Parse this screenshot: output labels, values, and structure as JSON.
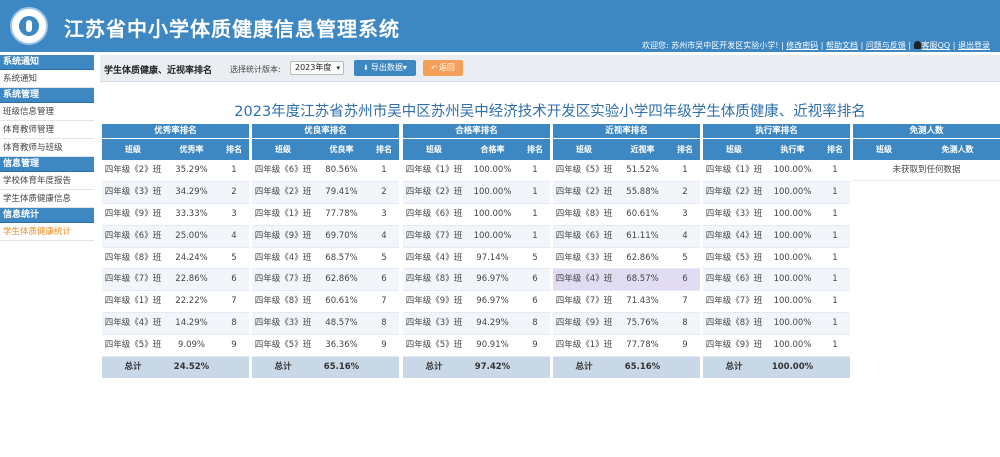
{
  "header": {
    "title": "江苏省中小学体质健康信息管理系统",
    "welcome": "欢迎您: 苏州市吴中区开发区实验小学!",
    "links": [
      "修改密码",
      "帮助文档",
      "问题与反馈",
      "客服QQ",
      "退出登录"
    ]
  },
  "sidebar": {
    "groups": [
      {
        "title": "系统通知",
        "items": [
          "系统通知"
        ]
      },
      {
        "title": "系统管理",
        "items": [
          "班级信息管理",
          "体育教师管理",
          "体育教师与班级"
        ]
      },
      {
        "title": "信息管理",
        "items": [
          "学校体育年度报告",
          "学生体质健康信息"
        ]
      },
      {
        "title": "信息统计",
        "items": [
          "学生体质健康统计"
        ]
      }
    ],
    "active": "学生体质健康统计"
  },
  "toolbar": {
    "title": "学生体质健康、近视率排名",
    "version_label": "选择统计版本:",
    "version_value": "2023年度",
    "export_label": "导出数据",
    "back_label": "返回"
  },
  "main": {
    "title": "2023年度江苏省苏州市吴中区苏州吴中经济技术开发区实验小学四年级学生体质健康、近视率排名",
    "col_class": "班级",
    "col_rank": "排名",
    "total_label": "总计"
  },
  "colors": {
    "primary": "#3d87c2",
    "accent": "#f08c1e",
    "highlight": "#e2dcf3"
  },
  "panels": [
    {
      "title": "优秀率排名",
      "col": "优秀率",
      "total": "24.52%",
      "rows": [
        [
          "四年级《2》班",
          "35.29%",
          "1"
        ],
        [
          "四年级《3》班",
          "34.29%",
          "2"
        ],
        [
          "四年级《9》班",
          "33.33%",
          "3"
        ],
        [
          "四年级《6》班",
          "25.00%",
          "4"
        ],
        [
          "四年级《8》班",
          "24.24%",
          "5"
        ],
        [
          "四年级《7》班",
          "22.86%",
          "6"
        ],
        [
          "四年级《1》班",
          "22.22%",
          "7"
        ],
        [
          "四年级《4》班",
          "14.29%",
          "8"
        ],
        [
          "四年级《5》班",
          "9.09%",
          "9"
        ]
      ]
    },
    {
      "title": "优良率排名",
      "col": "优良率",
      "total": "65.16%",
      "rows": [
        [
          "四年级《6》班",
          "80.56%",
          "1"
        ],
        [
          "四年级《2》班",
          "79.41%",
          "2"
        ],
        [
          "四年级《1》班",
          "77.78%",
          "3"
        ],
        [
          "四年级《9》班",
          "69.70%",
          "4"
        ],
        [
          "四年级《4》班",
          "68.57%",
          "5"
        ],
        [
          "四年级《7》班",
          "62.86%",
          "6"
        ],
        [
          "四年级《8》班",
          "60.61%",
          "7"
        ],
        [
          "四年级《3》班",
          "48.57%",
          "8"
        ],
        [
          "四年级《5》班",
          "36.36%",
          "9"
        ]
      ]
    },
    {
      "title": "合格率排名",
      "col": "合格率",
      "total": "97.42%",
      "rows": [
        [
          "四年级《1》班",
          "100.00%",
          "1"
        ],
        [
          "四年级《2》班",
          "100.00%",
          "1"
        ],
        [
          "四年级《6》班",
          "100.00%",
          "1"
        ],
        [
          "四年级《7》班",
          "100.00%",
          "1"
        ],
        [
          "四年级《4》班",
          "97.14%",
          "5"
        ],
        [
          "四年级《8》班",
          "96.97%",
          "6"
        ],
        [
          "四年级《9》班",
          "96.97%",
          "6"
        ],
        [
          "四年级《3》班",
          "94.29%",
          "8"
        ],
        [
          "四年级《5》班",
          "90.91%",
          "9"
        ]
      ]
    },
    {
      "title": "近视率排名",
      "col": "近视率",
      "total": "65.16%",
      "rows": [
        [
          "四年级《5》班",
          "51.52%",
          "1"
        ],
        [
          "四年级《2》班",
          "55.88%",
          "2"
        ],
        [
          "四年级《8》班",
          "60.61%",
          "3"
        ],
        [
          "四年级《6》班",
          "61.11%",
          "4"
        ],
        [
          "四年级《3》班",
          "62.86%",
          "5"
        ],
        [
          "四年级《4》班",
          "68.57%",
          "6"
        ],
        [
          "四年级《7》班",
          "71.43%",
          "7"
        ],
        [
          "四年级《9》班",
          "75.76%",
          "8"
        ],
        [
          "四年级《1》班",
          "77.78%",
          "9"
        ]
      ]
    },
    {
      "title": "执行率排名",
      "col": "执行率",
      "total": "100.00%",
      "rows": [
        [
          "四年级《1》班",
          "100.00%",
          "1"
        ],
        [
          "四年级《2》班",
          "100.00%",
          "1"
        ],
        [
          "四年级《3》班",
          "100.00%",
          "1"
        ],
        [
          "四年级《4》班",
          "100.00%",
          "1"
        ],
        [
          "四年级《5》班",
          "100.00%",
          "1"
        ],
        [
          "四年级《6》班",
          "100.00%",
          "1"
        ],
        [
          "四年级《7》班",
          "100.00%",
          "1"
        ],
        [
          "四年级《8》班",
          "100.00%",
          "1"
        ],
        [
          "四年级《9》班",
          "100.00%",
          "1"
        ]
      ]
    }
  ],
  "exempt_panel": {
    "title": "免测人数",
    "col": "免测人数",
    "empty_text": "未获取到任何数据"
  }
}
